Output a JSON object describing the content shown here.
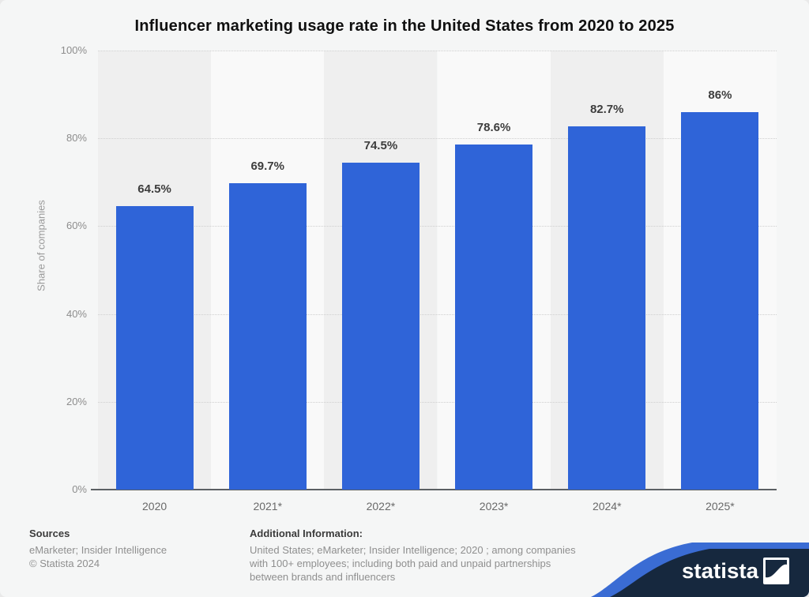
{
  "page": {
    "background": "#f5f6f6"
  },
  "title": "Influencer marketing usage rate in the United States from 2020 to 2025",
  "chart_data": {
    "type": "bar",
    "title": "Influencer marketing usage rate in the United States from 2020 to 2025",
    "categories": [
      "2020",
      "2021*",
      "2022*",
      "2023*",
      "2024*",
      "2025*"
    ],
    "values": [
      64.5,
      69.7,
      74.5,
      78.6,
      82.7,
      86
    ],
    "value_labels": [
      "64.5%",
      "69.7%",
      "74.5%",
      "78.6%",
      "82.7%",
      "86%"
    ],
    "xlabel": "",
    "ylabel": "Share of companies",
    "ylim": [
      0,
      100
    ],
    "yticks": [
      {
        "value": 100,
        "label": "100%"
      },
      {
        "value": 80,
        "label": "80%"
      },
      {
        "value": 60,
        "label": "60%"
      },
      {
        "value": 40,
        "label": "40%"
      },
      {
        "value": 20,
        "label": "20%"
      },
      {
        "value": 0,
        "label": "0%"
      }
    ],
    "grid": "horizontal-dotted",
    "legend": "none",
    "bar_color": "#2f64d8",
    "band_colors": [
      "#efefef",
      "#f9f9f9"
    ]
  },
  "footer": {
    "sources_heading": "Sources",
    "sources_lines": [
      "eMarketer; Insider Intelligence",
      "© Statista 2024"
    ],
    "additional_heading": "Additional Information:",
    "additional_lines": [
      "United States; eMarketer; Insider Intelligence; 2020 ; among companies",
      "with 100+ employees; including both paid and unpaid partnerships",
      "between brands and influencers"
    ]
  },
  "logo": {
    "wordmark": "statista",
    "glyph": "statista-wave-icon",
    "navy": "#16283e",
    "stripe_blue": "#3a6cd4"
  }
}
